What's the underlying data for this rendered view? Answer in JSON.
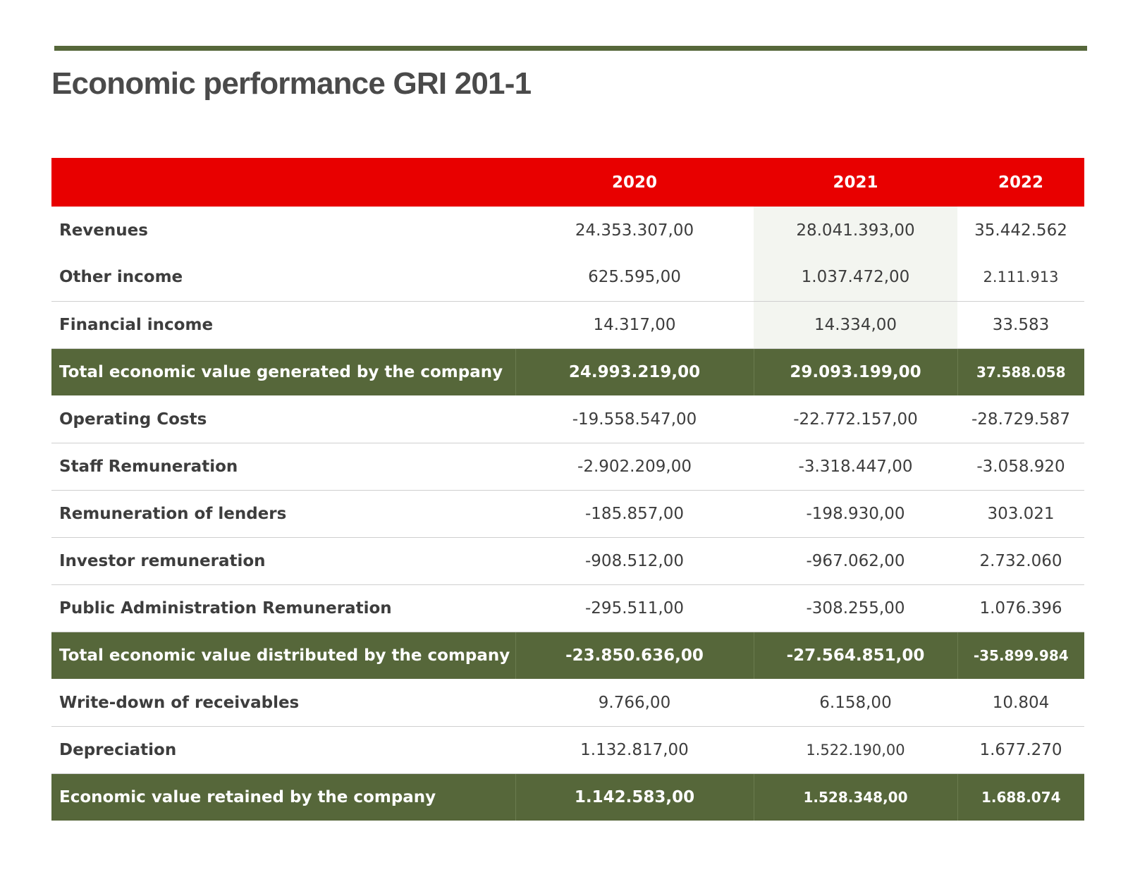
{
  "title": "Economic performance GRI 201-1",
  "colors": {
    "rule": "#56673a",
    "header": "#e80000",
    "total_row": "#56673a",
    "shade_2021": "#f3f5f0"
  },
  "table": {
    "columns": [
      "",
      "2020",
      "2021",
      "2022"
    ],
    "rows": [
      {
        "label": "Revenues",
        "v2020": "24.353.307,00",
        "v2021": "28.041.393,00",
        "v2022": "35.442.562",
        "total": false
      },
      {
        "label": "Other income",
        "v2020": "625.595,00",
        "v2021": "1.037.472,00",
        "v2022": "2.111.913",
        "total": false
      },
      {
        "label": "Financial income",
        "v2020": "14.317,00",
        "v2021": "14.334,00",
        "v2022": "33.583",
        "total": false
      },
      {
        "label": "Total economic value generated by the company",
        "v2020": "24.993.219,00",
        "v2021": "29.093.199,00",
        "v2022": "37.588.058",
        "total": true
      },
      {
        "label": "Operating Costs",
        "v2020": "-19.558.547,00",
        "v2021": "-22.772.157,00",
        "v2022": "-28.729.587",
        "total": false
      },
      {
        "label": "Staff Remuneration",
        "v2020": "-2.902.209,00",
        "v2021": "-3.318.447,00",
        "v2022": "-3.058.920",
        "total": false
      },
      {
        "label": "Remuneration of lenders",
        "v2020": "-185.857,00",
        "v2021": "-198.930,00",
        "v2022": "303.021",
        "total": false
      },
      {
        "label": "Investor remuneration",
        "v2020": "-908.512,00",
        "v2021": "-967.062,00",
        "v2022": "2.732.060",
        "total": false
      },
      {
        "label": "Public Administration Remuneration",
        "v2020": "-295.511,00",
        "v2021": "-308.255,00",
        "v2022": "1.076.396",
        "total": false
      },
      {
        "label": "Total economic value distributed by the company",
        "v2020": "-23.850.636,00",
        "v2021": "-27.564.851,00",
        "v2022": "-35.899.984",
        "total": true
      },
      {
        "label": "Write-down of receivables",
        "v2020": "9.766,00",
        "v2021": "6.158,00",
        "v2022": "10.804",
        "total": false
      },
      {
        "label": "Depreciation",
        "v2020": "1.132.817,00",
        "v2021": "1.522.190,00",
        "v2022": "1.677.270",
        "total": false
      },
      {
        "label": "Economic value retained by the company",
        "v2020": "1.142.583,00",
        "v2021": "1.528.348,00",
        "v2022": "1.688.074",
        "total": true
      }
    ]
  }
}
